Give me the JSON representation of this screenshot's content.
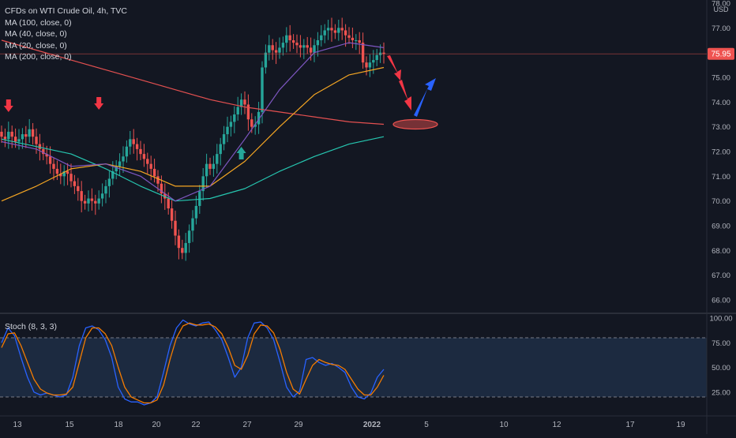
{
  "legend": {
    "title": "CFDs on WTI Crude Oil, 4h, TVC",
    "ma100": "MA (100, close, 0)",
    "ma40": "MA (40, close, 0)",
    "ma20": "MA (20, close, 0)",
    "ma200": "MA (200, close, 0)"
  },
  "stoch_label": "Stoch (8, 3, 3)",
  "currency": "USD",
  "last_price_label": "75.95",
  "colors": {
    "background": "#131722",
    "up": "#26a69a",
    "down": "#ef5350",
    "ma100": "#e35050",
    "ma40": "#26c6b0",
    "ma20": "#f5a623",
    "ma200": "#7e57c2",
    "stoch_k": "#2962ff",
    "stoch_d": "#f57c00",
    "arrow_down": "#f23645",
    "arrow_up": "#2962ff",
    "arrow_up_small": "#26a69a"
  },
  "chart_data": {
    "type": "candlestick",
    "x_tick_labels": [
      "13",
      "15",
      "18",
      "20",
      "22",
      "27",
      "29",
      "2022",
      "5",
      "10",
      "12",
      "17",
      "19"
    ],
    "price_axis": {
      "min": 66.0,
      "max": 78.0,
      "ticks": [
        "66.00",
        "67.00",
        "68.00",
        "69.00",
        "70.00",
        "71.00",
        "72.00",
        "73.00",
        "74.00",
        "75.00",
        "76.00",
        "77.00",
        "78.00"
      ]
    },
    "stoch_axis": {
      "min": 0,
      "max": 100,
      "ticks": [
        "25.00",
        "50.00",
        "75.00",
        "100.00"
      ],
      "band": [
        20,
        80
      ]
    },
    "last_price": 75.95,
    "target_zone": 73.1,
    "close": [
      72.6,
      72.5,
      72.8,
      72.6,
      72.4,
      72.5,
      72.7,
      72.6,
      72.9,
      72.6,
      72.3,
      72.1,
      71.9,
      71.8,
      71.5,
      71.3,
      71.1,
      71.0,
      71.2,
      71.1,
      70.8,
      70.6,
      70.4,
      70.0,
      69.9,
      70.1,
      70.0,
      69.9,
      70.1,
      70.3,
      70.6,
      70.9,
      71.2,
      71.4,
      71.6,
      71.8,
      72.2,
      72.5,
      72.3,
      72.1,
      71.9,
      71.7,
      71.5,
      71.3,
      71.0,
      70.7,
      70.3,
      70.1,
      69.7,
      69.2,
      68.6,
      68.1,
      67.9,
      68.3,
      68.8,
      69.3,
      69.8,
      70.4,
      71.0,
      71.5,
      71.3,
      71.5,
      71.9,
      72.3,
      72.7,
      73.0,
      73.2,
      73.5,
      73.8,
      74.1,
      73.9,
      73.3,
      73.0,
      73.1,
      73.6,
      75.4,
      76.0,
      76.3,
      76.1,
      76.0,
      76.2,
      76.4,
      76.7,
      76.5,
      76.4,
      76.3,
      76.2,
      76.3,
      76.2,
      76.0,
      76.3,
      76.5,
      76.7,
      76.9,
      77.0,
      76.9,
      76.8,
      77.0,
      76.9,
      76.7,
      76.6,
      76.5,
      76.5,
      76.4,
      75.6,
      75.4,
      75.6,
      75.7,
      75.9,
      76.0,
      75.95
    ],
    "overlay": [
      {
        "type": "arrow",
        "direction": "down",
        "at_index": 2,
        "price": 73.6
      },
      {
        "type": "arrow",
        "direction": "down",
        "at_index": 28,
        "price": 73.6
      },
      {
        "type": "arrow",
        "direction": "up",
        "at_index": 69,
        "price": 72.0
      },
      {
        "type": "projection-arrow",
        "direction": "down-then-up"
      },
      {
        "type": "ellipse",
        "price": 73.1
      }
    ],
    "series": [
      {
        "name": "MA (100, close, 0)",
        "values": [
          76.5,
          76.1,
          75.7,
          75.3,
          74.9,
          74.5,
          74.1,
          73.8,
          73.6,
          73.4,
          73.2,
          73.1
        ]
      },
      {
        "name": "MA (40, close, 0)",
        "values": [
          72.5,
          72.2,
          71.9,
          71.3,
          70.6,
          70.0,
          70.1,
          70.5,
          71.2,
          71.8,
          72.3,
          72.6
        ]
      },
      {
        "name": "MA (20, close, 0)",
        "values": [
          70.0,
          70.6,
          71.3,
          71.5,
          71.2,
          70.6,
          70.6,
          71.6,
          73.0,
          74.3,
          75.1,
          75.4
        ]
      },
      {
        "name": "MA (200, close, 0)",
        "values": [
          72.4,
          72.1,
          71.4,
          71.5,
          71.0,
          70.0,
          70.6,
          72.5,
          74.5,
          76.0,
          76.4,
          76.2
        ]
      }
    ],
    "stoch_k": [
      75,
      90,
      82,
      60,
      40,
      25,
      22,
      24,
      22,
      20,
      22,
      40,
      72,
      90,
      92,
      88,
      78,
      60,
      30,
      18,
      15,
      15,
      12,
      14,
      20,
      45,
      72,
      90,
      98,
      94,
      92,
      95,
      96,
      88,
      78,
      60,
      40,
      50,
      80,
      95,
      96,
      90,
      78,
      55,
      30,
      20,
      26,
      58,
      60,
      55,
      52,
      54,
      50,
      45,
      30,
      20,
      18,
      24,
      40,
      48
    ],
    "stoch_d": [
      70,
      84,
      85,
      72,
      55,
      38,
      28,
      24,
      22,
      22,
      23,
      30,
      55,
      80,
      90,
      90,
      84,
      72,
      50,
      30,
      20,
      17,
      14,
      14,
      17,
      32,
      58,
      80,
      92,
      95,
      93,
      93,
      94,
      91,
      84,
      70,
      52,
      48,
      62,
      84,
      93,
      92,
      85,
      68,
      45,
      28,
      23,
      38,
      52,
      58,
      55,
      53,
      52,
      48,
      38,
      28,
      22,
      22,
      30,
      42
    ]
  }
}
